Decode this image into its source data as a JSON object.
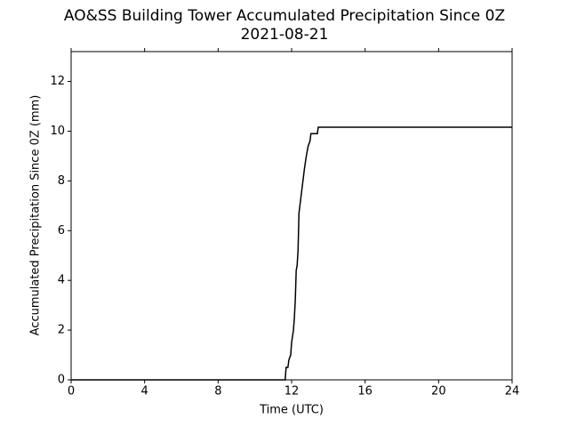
{
  "chart_data": {
    "type": "line",
    "title": "AO&SS Building Tower Accumulated Precipitation Since 0Z",
    "subtitle": "2021-08-21",
    "x_label": "Time (UTC)",
    "y_label": "Accumulated Precipitation Since 0Z (mm)",
    "x": [
      0,
      11.65,
      11.7,
      11.8,
      11.85,
      11.95,
      12.0,
      12.1,
      12.15,
      12.2,
      12.25,
      12.3,
      12.35,
      12.4,
      12.5,
      12.6,
      12.7,
      12.8,
      12.9,
      13.0,
      13.05,
      13.4,
      13.45,
      24
    ],
    "series": [
      {
        "name": "Accumulated Precipitation",
        "color": "#000000",
        "values": [
          0,
          0,
          0.5,
          0.5,
          0.8,
          1.0,
          1.5,
          2.0,
          2.5,
          3.2,
          4.4,
          4.6,
          5.2,
          6.7,
          7.3,
          7.9,
          8.5,
          9.0,
          9.4,
          9.6,
          9.9,
          9.9,
          10.16,
          10.16
        ]
      }
    ],
    "xlim": [
      0,
      24
    ],
    "xticks": [
      0,
      4,
      8,
      12,
      16,
      20,
      24
    ],
    "ylim": [
      0,
      13.2
    ],
    "yticks": [
      0,
      2,
      4,
      6,
      8,
      10,
      12
    ],
    "grid": false
  }
}
